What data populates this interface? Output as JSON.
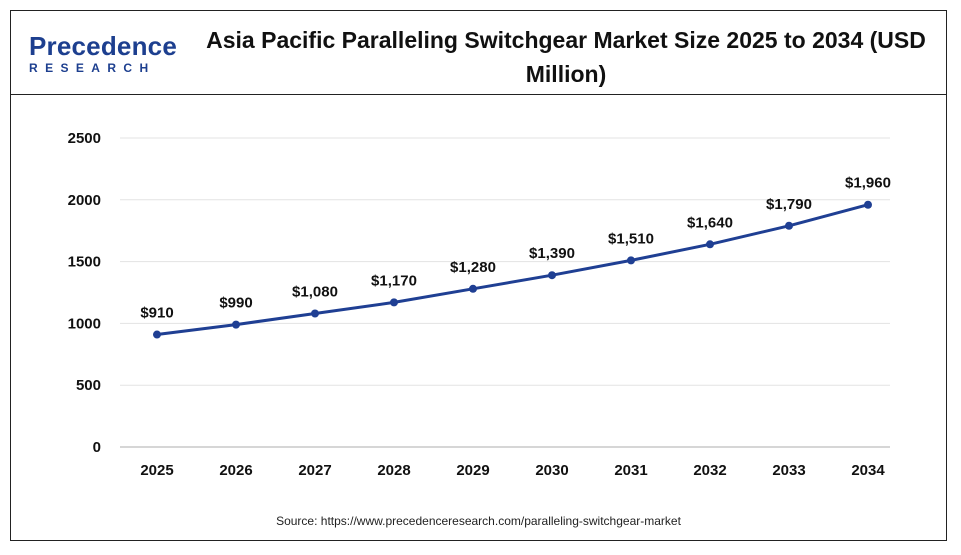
{
  "header": {
    "logo_main": "Precedence",
    "logo_sub": "RESEARCH",
    "title": "Asia Pacific Paralleling Switchgear Market Size 2025 to 2034 (USD Million)"
  },
  "source": "Source: https://www.precedenceresearch.com/paralleling-switchgear-market",
  "colors": {
    "line": "#1f3f93",
    "text": "#111111",
    "grid": "#e3e3e3",
    "brand": "#1d3f8f"
  },
  "chart_data": {
    "type": "line",
    "title": "Asia Pacific Paralleling Switchgear Market Size 2025 to 2034 (USD Million)",
    "categories": [
      "2025",
      "2026",
      "2027",
      "2028",
      "2029",
      "2030",
      "2031",
      "2032",
      "2033",
      "2034"
    ],
    "values": [
      910,
      990,
      1080,
      1170,
      1280,
      1390,
      1510,
      1640,
      1790,
      1960
    ],
    "data_labels": [
      "$910",
      "$990",
      "$1,080",
      "$1,170",
      "$1,280",
      "$1,390",
      "$1,510",
      "$1,640",
      "$1,790",
      "$1,960"
    ],
    "yticks": [
      "0",
      "500",
      "1000",
      "1500",
      "2000",
      "2500"
    ],
    "ytick_values": [
      0,
      500,
      1000,
      1500,
      2000,
      2500
    ],
    "ylim": [
      0,
      2500
    ],
    "xlabel": "",
    "ylabel": "",
    "grid": true,
    "legend": "none"
  }
}
